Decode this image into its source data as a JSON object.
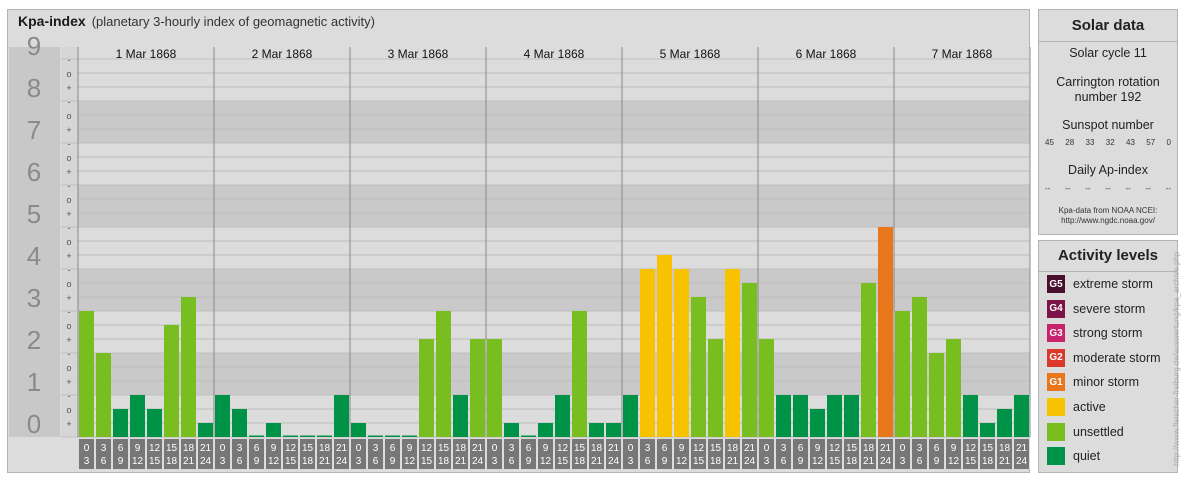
{
  "header": {
    "title": "Kpa-index",
    "subtitle": "(planetary 3-hourly index of geomagnetic activity)"
  },
  "chart_data": {
    "type": "bar",
    "ylim": [
      0,
      9
    ],
    "y_ticks": [
      "0",
      "1",
      "2",
      "3",
      "4",
      "5",
      "6",
      "7",
      "8",
      "9"
    ],
    "y_minor_labels": [
      "+",
      "o",
      "-"
    ],
    "days": [
      "1 Mar 1868",
      "2 Mar 1868",
      "3 Mar 1868",
      "4 Mar 1868",
      "5 Mar 1868",
      "6 Mar 1868",
      "7 Mar 1868"
    ],
    "interval_labels": [
      [
        "0",
        "3"
      ],
      [
        "3",
        "6"
      ],
      [
        "6",
        "9"
      ],
      [
        "9",
        "12"
      ],
      [
        "12",
        "15"
      ],
      [
        "15",
        "18"
      ],
      [
        "18",
        "21"
      ],
      [
        "21",
        "24"
      ]
    ],
    "values": [
      [
        3.0,
        2.0,
        0.667,
        1.0,
        0.667,
        2.667,
        3.333,
        0.333
      ],
      [
        1.0,
        0.667,
        0.0,
        0.333,
        0.0,
        0.0,
        0.0,
        1.0
      ],
      [
        0.333,
        0.0,
        0.0,
        0.0,
        2.333,
        3.0,
        1.0,
        2.333
      ],
      [
        2.333,
        0.333,
        0.0,
        0.333,
        1.0,
        3.0,
        0.333,
        0.333
      ],
      [
        1.0,
        4.0,
        4.333,
        4.0,
        3.333,
        2.333,
        4.0,
        3.667
      ],
      [
        2.333,
        1.0,
        1.0,
        0.667,
        1.0,
        1.0,
        3.667,
        5.0
      ],
      [
        3.0,
        3.333,
        2.0,
        2.333,
        1.0,
        0.333,
        0.667,
        1.0
      ]
    ],
    "level_colors": {
      "quiet": "#009247",
      "unsettled": "#78be21",
      "active": "#f7c200",
      "minor_storm": "#e8761b"
    }
  },
  "sidebar": {
    "solar": {
      "title": "Solar data",
      "cycle": "Solar cycle 11",
      "carrington_line1": "Carrington rotation",
      "carrington_line2": "number 192",
      "sunspot_title": "Sunspot number",
      "sunspot_values": [
        "45",
        "28",
        "33",
        "32",
        "43",
        "57",
        "0"
      ],
      "ap_title": "Daily Ap-index",
      "ap_values": [
        "--",
        "--",
        "--",
        "--",
        "--",
        "--",
        "--"
      ],
      "source_line1": "Kpa-data from NOAA NCEI:",
      "source_line2": "http://www.ngdc.noaa.gov/"
    },
    "activity": {
      "title": "Activity levels",
      "levels": [
        {
          "code": "G5",
          "label": "extreme storm",
          "color": "#4a0f2a"
        },
        {
          "code": "G4",
          "label": "severe storm",
          "color": "#7d1448"
        },
        {
          "code": "G3",
          "label": "strong storm",
          "color": "#c8236a"
        },
        {
          "code": "G2",
          "label": "moderate storm",
          "color": "#d9392b"
        },
        {
          "code": "G1",
          "label": "minor storm",
          "color": "#e8761b"
        },
        {
          "code": "",
          "label": "active",
          "color": "#f7c200"
        },
        {
          "code": "",
          "label": "unsettled",
          "color": "#78be21"
        },
        {
          "code": "",
          "label": "quiet",
          "color": "#009247"
        }
      ]
    }
  },
  "watermark": "http://www.fleischer-freiburg.de/auswertung/kpa_archive.php"
}
